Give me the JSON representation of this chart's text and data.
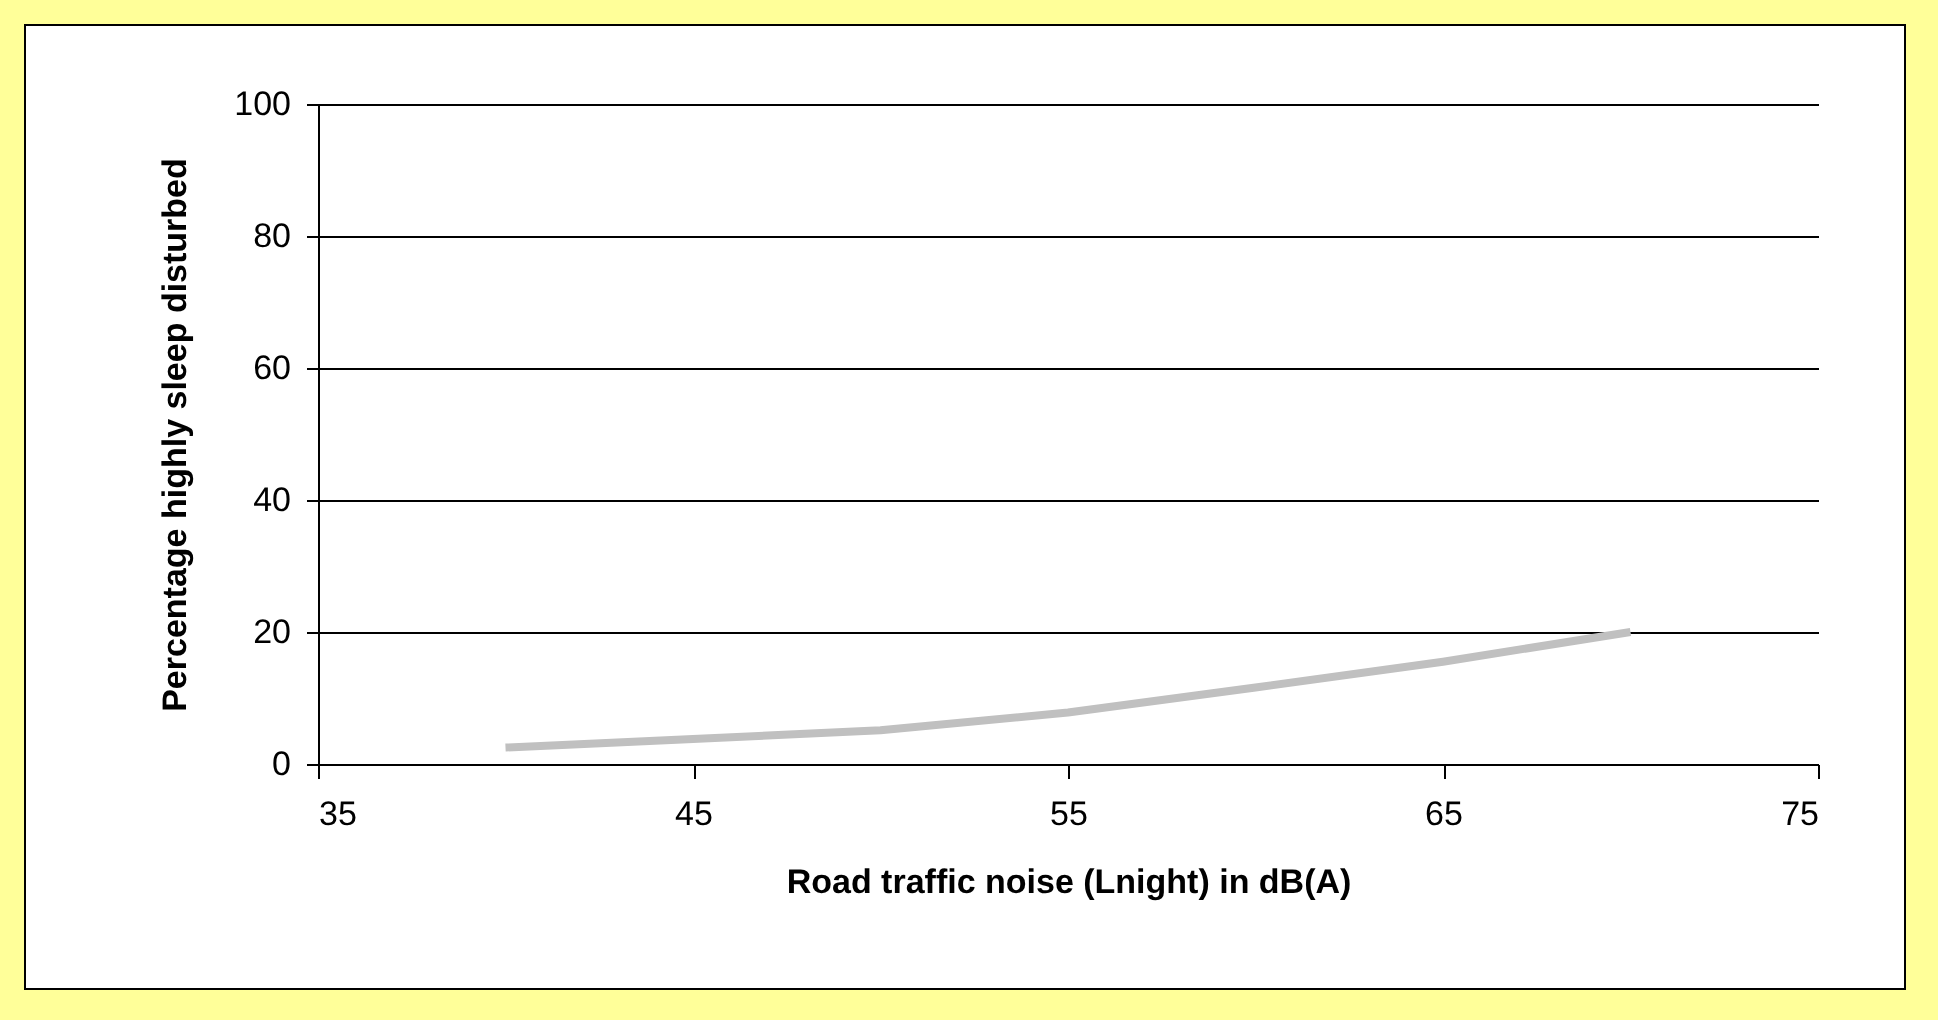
{
  "chart_data": {
    "type": "line",
    "xlabel": "Road traffic noise (Lnight) in dB(A)",
    "ylabel": "Percentage highly sleep disturbed",
    "x": [
      40,
      45,
      50,
      55,
      60,
      65,
      70
    ],
    "series": [
      {
        "color": "#c0c0c0",
        "values": [
          2.5,
          3.8,
          5.1,
          7.8,
          11.6,
          15.5,
          20
        ]
      }
    ],
    "xlim": [
      35,
      75
    ],
    "xticks": [
      35,
      45,
      55,
      65,
      75
    ],
    "ylim": [
      0,
      100
    ],
    "yticks": [
      0,
      20,
      40,
      60,
      80,
      100
    ],
    "grid": "y",
    "legend": false,
    "marker": "none",
    "line_style": "solid"
  }
}
